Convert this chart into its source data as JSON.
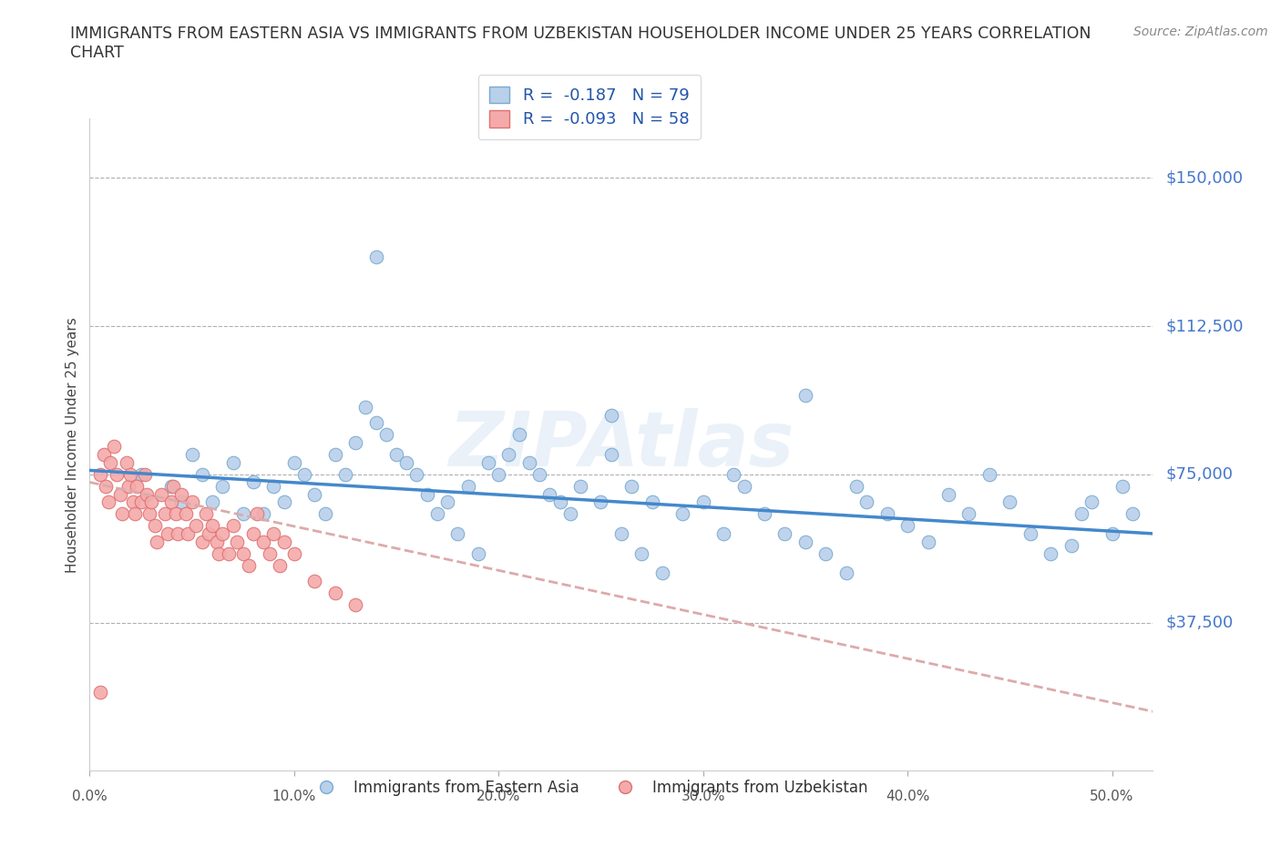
{
  "title": "IMMIGRANTS FROM EASTERN ASIA VS IMMIGRANTS FROM UZBEKISTAN HOUSEHOLDER INCOME UNDER 25 YEARS CORRELATION\nCHART",
  "source_text": "Source: ZipAtlas.com",
  "ylabel": "Householder Income Under 25 years",
  "xlim": [
    0.0,
    0.52
  ],
  "ylim": [
    0,
    165000
  ],
  "yticks": [
    0,
    37500,
    75000,
    112500,
    150000
  ],
  "ytick_labels": [
    "",
    "$37,500",
    "$75,000",
    "$112,500",
    "$150,000"
  ],
  "xtick_labels": [
    "0.0%",
    "10.0%",
    "20.0%",
    "30.0%",
    "40.0%",
    "50.0%"
  ],
  "xticks": [
    0.0,
    0.1,
    0.2,
    0.3,
    0.4,
    0.5
  ],
  "grid_color": "#b0b0b0",
  "bg_color": "#ffffff",
  "blue_fill": "#b8d0ea",
  "pink_fill": "#f4aaaa",
  "blue_edge": "#7aaad0",
  "pink_edge": "#e07070",
  "r_blue": -0.187,
  "n_blue": 79,
  "r_pink": -0.093,
  "n_pink": 58,
  "legend_label_blue": "Immigrants from Eastern Asia",
  "legend_label_pink": "Immigrants from Uzbekistan",
  "watermark": "ZIPAtlas",
  "blue_line_color": "#4488cc",
  "pink_line_color": "#ddaaaa",
  "blue_scatter_x": [
    0.025,
    0.04,
    0.045,
    0.05,
    0.055,
    0.06,
    0.065,
    0.07,
    0.075,
    0.08,
    0.085,
    0.09,
    0.095,
    0.1,
    0.105,
    0.11,
    0.115,
    0.12,
    0.125,
    0.13,
    0.135,
    0.14,
    0.145,
    0.15,
    0.155,
    0.16,
    0.165,
    0.17,
    0.175,
    0.18,
    0.185,
    0.19,
    0.195,
    0.2,
    0.205,
    0.21,
    0.215,
    0.22,
    0.225,
    0.23,
    0.235,
    0.24,
    0.25,
    0.255,
    0.26,
    0.265,
    0.27,
    0.275,
    0.28,
    0.29,
    0.3,
    0.31,
    0.315,
    0.32,
    0.33,
    0.34,
    0.35,
    0.36,
    0.37,
    0.375,
    0.38,
    0.39,
    0.4,
    0.41,
    0.42,
    0.43,
    0.44,
    0.45,
    0.46,
    0.47,
    0.48,
    0.485,
    0.49,
    0.5,
    0.505,
    0.51,
    0.14,
    0.255,
    0.35
  ],
  "blue_scatter_y": [
    75000,
    72000,
    68000,
    80000,
    75000,
    68000,
    72000,
    78000,
    65000,
    73000,
    65000,
    72000,
    68000,
    78000,
    75000,
    70000,
    65000,
    80000,
    75000,
    83000,
    92000,
    88000,
    85000,
    80000,
    78000,
    75000,
    70000,
    65000,
    68000,
    60000,
    72000,
    55000,
    78000,
    75000,
    80000,
    85000,
    78000,
    75000,
    70000,
    68000,
    65000,
    72000,
    68000,
    80000,
    60000,
    72000,
    55000,
    68000,
    50000,
    65000,
    68000,
    60000,
    75000,
    72000,
    65000,
    60000,
    58000,
    55000,
    50000,
    72000,
    68000,
    65000,
    62000,
    58000,
    70000,
    65000,
    75000,
    68000,
    60000,
    55000,
    57000,
    65000,
    68000,
    60000,
    72000,
    65000,
    130000,
    90000,
    95000
  ],
  "pink_scatter_x": [
    0.005,
    0.007,
    0.008,
    0.009,
    0.01,
    0.012,
    0.013,
    0.015,
    0.016,
    0.018,
    0.019,
    0.02,
    0.021,
    0.022,
    0.023,
    0.025,
    0.027,
    0.028,
    0.029,
    0.03,
    0.032,
    0.033,
    0.035,
    0.037,
    0.038,
    0.04,
    0.041,
    0.042,
    0.043,
    0.045,
    0.047,
    0.048,
    0.05,
    0.052,
    0.055,
    0.057,
    0.058,
    0.06,
    0.062,
    0.063,
    0.065,
    0.068,
    0.07,
    0.072,
    0.075,
    0.078,
    0.08,
    0.082,
    0.085,
    0.088,
    0.09,
    0.093,
    0.095,
    0.1,
    0.11,
    0.12,
    0.13,
    0.005
  ],
  "pink_scatter_y": [
    75000,
    80000,
    72000,
    68000,
    78000,
    82000,
    75000,
    70000,
    65000,
    78000,
    72000,
    75000,
    68000,
    65000,
    72000,
    68000,
    75000,
    70000,
    65000,
    68000,
    62000,
    58000,
    70000,
    65000,
    60000,
    68000,
    72000,
    65000,
    60000,
    70000,
    65000,
    60000,
    68000,
    62000,
    58000,
    65000,
    60000,
    62000,
    58000,
    55000,
    60000,
    55000,
    62000,
    58000,
    55000,
    52000,
    60000,
    65000,
    58000,
    55000,
    60000,
    52000,
    58000,
    55000,
    48000,
    45000,
    42000,
    20000
  ]
}
